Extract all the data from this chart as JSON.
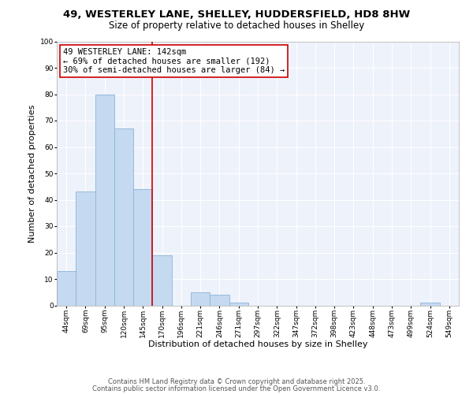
{
  "title_line1": "49, WESTERLEY LANE, SHELLEY, HUDDERSFIELD, HD8 8HW",
  "title_line2": "Size of property relative to detached houses in Shelley",
  "xlabel": "Distribution of detached houses by size in Shelley",
  "ylabel": "Number of detached properties",
  "bar_labels": [
    "44sqm",
    "69sqm",
    "95sqm",
    "120sqm",
    "145sqm",
    "170sqm",
    "196sqm",
    "221sqm",
    "246sqm",
    "271sqm",
    "297sqm",
    "322sqm",
    "347sqm",
    "372sqm",
    "398sqm",
    "423sqm",
    "448sqm",
    "473sqm",
    "499sqm",
    "524sqm",
    "549sqm"
  ],
  "bar_values": [
    13,
    43,
    80,
    67,
    44,
    19,
    0,
    5,
    4,
    1,
    0,
    0,
    0,
    0,
    0,
    0,
    0,
    0,
    0,
    1,
    0
  ],
  "bar_color": "#c5d9f0",
  "bar_edge_color": "#8ab4d8",
  "vline_color": "#cc0000",
  "vline_pos": 4.5,
  "annotation_text": "49 WESTERLEY LANE: 142sqm\n← 69% of detached houses are smaller (192)\n30% of semi-detached houses are larger (84) →",
  "box_color": "#cc0000",
  "ylim": [
    0,
    100
  ],
  "yticks": [
    0,
    10,
    20,
    30,
    40,
    50,
    60,
    70,
    80,
    90,
    100
  ],
  "footer_line1": "Contains HM Land Registry data © Crown copyright and database right 2025.",
  "footer_line2": "Contains public sector information licensed under the Open Government Licence v3.0.",
  "bg_color": "#eef2fb",
  "title_fontsize": 9.5,
  "subtitle_fontsize": 8.5,
  "axis_label_fontsize": 8,
  "tick_fontsize": 6.5,
  "annotation_fontsize": 7.5,
  "footer_fontsize": 6
}
